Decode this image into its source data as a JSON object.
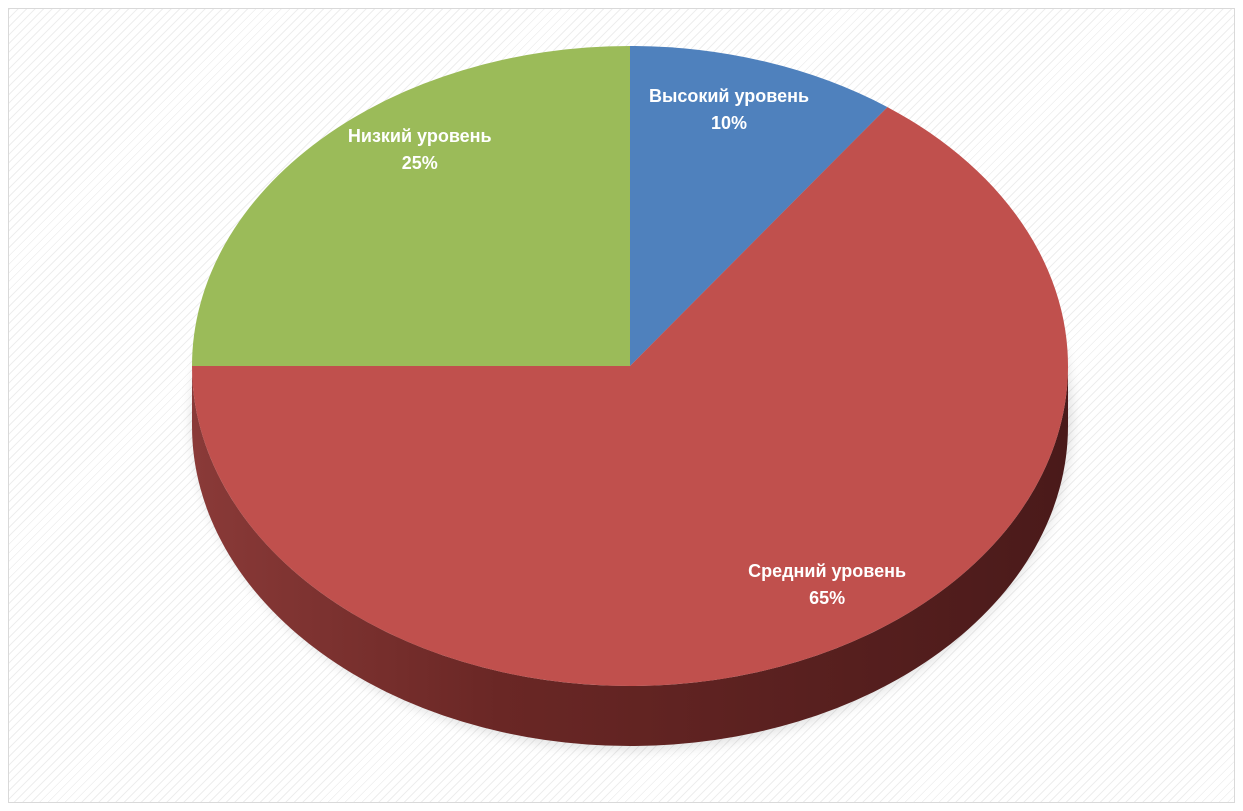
{
  "chart_data": {
    "type": "pie",
    "style": "3d",
    "slices": [
      {
        "label": "Высокий уровень",
        "value": 10,
        "percent_label": "10%",
        "color": "#4f81bd"
      },
      {
        "label": "Средний уровень",
        "value": 65,
        "percent_label": "65%",
        "color": "#c0504d"
      },
      {
        "label": "Низкий уровень",
        "value": 25,
        "percent_label": "25%",
        "color": "#9bbb59"
      }
    ]
  }
}
